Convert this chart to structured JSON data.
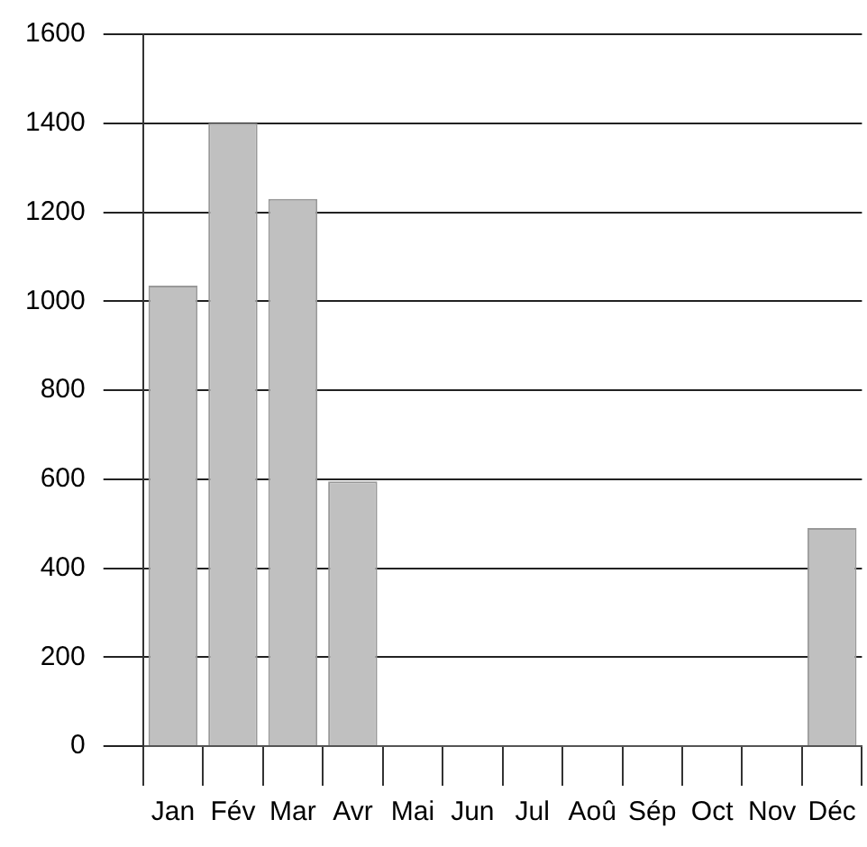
{
  "chart_data": {
    "type": "bar",
    "categories": [
      "Jan",
      "Fév",
      "Mar",
      "Avr",
      "Mai",
      "Jun",
      "Jul",
      "Aoû",
      "Sép",
      "Oct",
      "Nov",
      "Déc"
    ],
    "values": [
      1035,
      1400,
      1230,
      595,
      0,
      0,
      0,
      0,
      0,
      0,
      0,
      490
    ],
    "color": "#c0c0c0",
    "ylim": [
      0,
      1600
    ],
    "yticks": [
      0,
      200,
      400,
      600,
      800,
      1000,
      1200,
      1400,
      1600
    ],
    "grid": "y",
    "legend": false
  }
}
